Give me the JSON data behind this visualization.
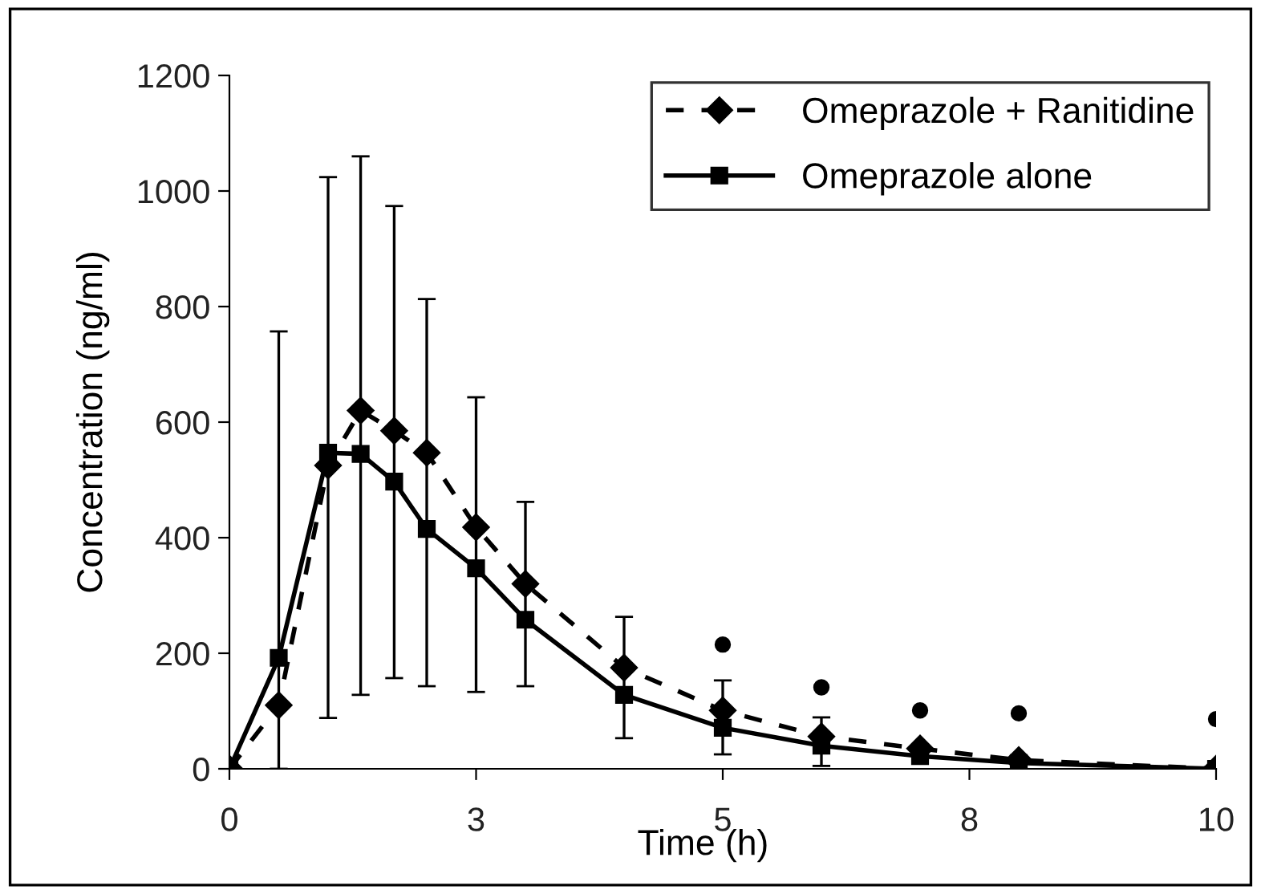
{
  "chart_data": {
    "type": "line",
    "xlabel": "Time (h)",
    "ylabel": "Concentration (ng/ml)",
    "xlim": [
      0,
      10
    ],
    "xticks": [
      0,
      {
        "value": 2.5,
        "label": "3"
      },
      5,
      {
        "value": 7.5,
        "label": "8"
      },
      10
    ],
    "ylim": [
      0,
      1200
    ],
    "yticks": [
      0,
      200,
      400,
      600,
      800,
      1000,
      1200
    ],
    "x": [
      0,
      0.5,
      1,
      1.33,
      1.67,
      2,
      2.5,
      3,
      4,
      5,
      6,
      7,
      8,
      10
    ],
    "grid": false,
    "legend": "top right",
    "series": [
      {
        "name": "Omeprazole + Ranitidine",
        "color": "#000000",
        "marker": "diamond",
        "line_style": "dashed",
        "values": [
          0,
          110,
          525,
          620,
          585,
          547,
          418,
          320,
          175,
          101,
          56,
          35,
          15,
          0
        ],
        "errors": [
          null,
          [
            0,
            757
          ],
          [
            88,
            1024
          ],
          [
            128,
            1060
          ],
          [
            157,
            974
          ],
          [
            143,
            813
          ],
          [
            133,
            643
          ],
          [
            143,
            462
          ],
          [
            53,
            263
          ],
          [
            25,
            153
          ],
          [
            5,
            89
          ],
          null,
          null,
          null
        ]
      },
      {
        "name": "Omeprazole alone",
        "color": "#000000",
        "marker": "square",
        "line_style": "solid",
        "values": [
          0,
          192,
          547,
          545,
          497,
          415,
          347,
          258,
          128,
          71,
          40,
          22,
          10,
          0
        ]
      },
      {
        "type": "scatter",
        "color": "#000000",
        "marker": "circle",
        "x": [
          5,
          6,
          7,
          8,
          10
        ],
        "values": [
          215,
          141,
          101,
          96,
          86
        ]
      }
    ]
  }
}
